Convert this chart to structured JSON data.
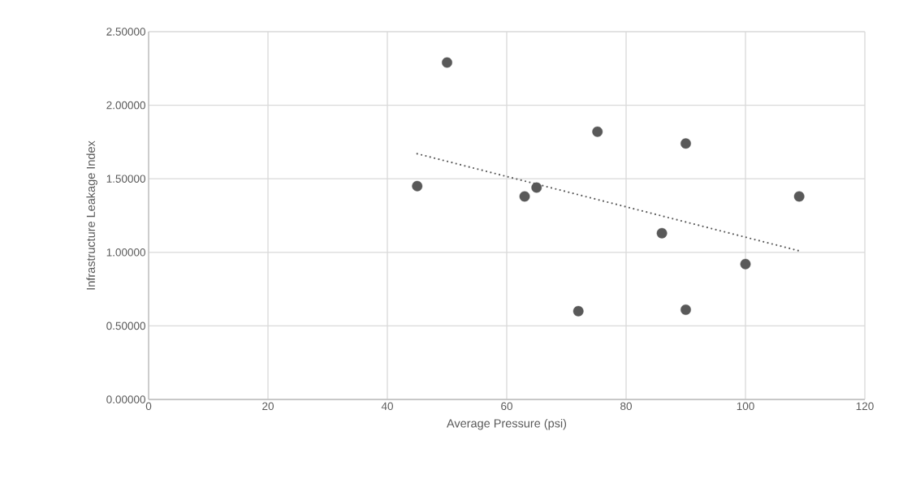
{
  "chart_data": {
    "type": "scatter",
    "xlabel": "Average Pressure (psi)",
    "ylabel": "Infrastructure Leakage Index",
    "xlim": [
      0,
      120
    ],
    "xticks": [
      0,
      20,
      40,
      60,
      80,
      100,
      120
    ],
    "ylim": [
      0,
      2.5
    ],
    "yticks": [
      {
        "value": 0,
        "label": "0.00000"
      },
      {
        "value": 0.5,
        "label": "0.50000"
      },
      {
        "value": 1,
        "label": "1.00000"
      },
      {
        "value": 1.5,
        "label": "1.50000"
      },
      {
        "value": 2,
        "label": "2.00000"
      },
      {
        "value": 2.5,
        "label": "2.50000"
      }
    ],
    "grid": true,
    "series": [
      {
        "color": "#595959",
        "marker": "circle",
        "x": [
          45,
          50,
          63,
          65,
          75.2,
          72,
          90,
          86,
          90,
          100,
          109
        ],
        "values": [
          1.45,
          2.29,
          1.38,
          1.44,
          1.82,
          0.6,
          1.74,
          1.13,
          0.61,
          0.92,
          1.38
        ]
      },
      {
        "type": "line",
        "color": "#595959",
        "line_style": "dotted",
        "marker": "none",
        "x": [
          45,
          109
        ],
        "values": [
          1.67,
          1.01
        ]
      }
    ]
  }
}
